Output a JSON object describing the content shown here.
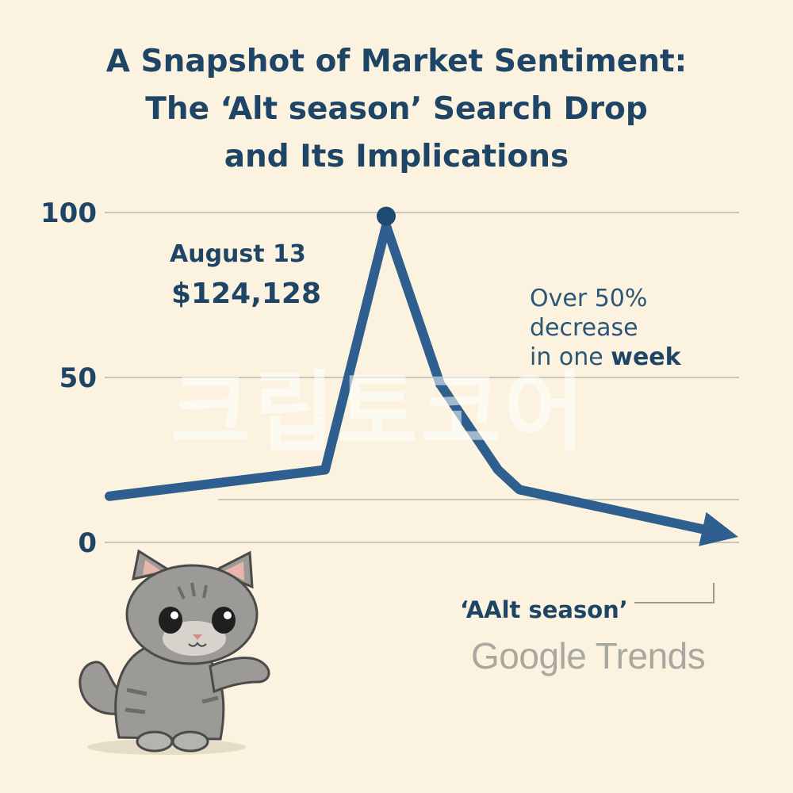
{
  "title_lines": [
    "A Snapshot of Market Sentiment:",
    "The ‘Alt season’ Search Drop",
    "and Its Implications"
  ],
  "chart_data": {
    "type": "line",
    "x": [
      0,
      1,
      2,
      3,
      4,
      5,
      6
    ],
    "series": [
      {
        "values": [
          14,
          22,
          96,
          48,
          22,
          16,
          2
        ]
      }
    ],
    "y_ticks": [
      "0",
      "50",
      "100"
    ],
    "ylim": [
      0,
      100
    ],
    "grid": true,
    "annotations": {
      "peak_date": "August 13",
      "peak_price": "$124,128",
      "drop_line1": "Over 50%",
      "drop_line2": "decrease",
      "drop_line3_a": "in one ",
      "drop_line3_b": "week"
    },
    "series_label": "‘AAlt season’",
    "source": "Google Trends",
    "colors": {
      "line": "#2e5f8e",
      "grid": "#c9c6bc",
      "text": "#1e4566"
    }
  },
  "watermark": "크립토코어"
}
